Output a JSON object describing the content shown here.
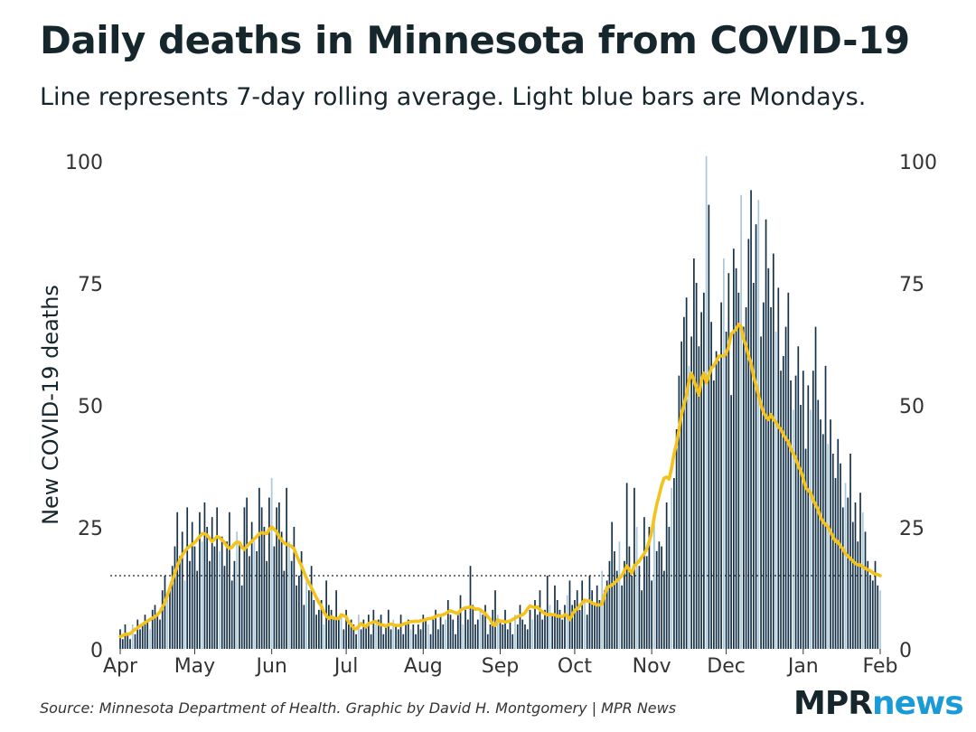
{
  "title": "Daily deaths in Minnesota from COVID-19",
  "subtitle": "Line represents 7-day rolling average. Light blue bars are Mondays.",
  "source": "Source: Minnesota Department of Health. Graphic by David H. Montgomery | MPR News",
  "brand": {
    "part1": "MPR",
    "part2": "news"
  },
  "colors": {
    "bar": "#16324a",
    "monday_bar": "#a9c8dc",
    "line": "#f3c21b",
    "reference": "#222222",
    "text": "#333333"
  },
  "chart_data": {
    "type": "bar",
    "title": "Daily deaths in Minnesota from COVID-19",
    "ylabel": "New COVID-19 deaths",
    "xlabel": "",
    "ylim": [
      0,
      100
    ],
    "yticks": [
      0,
      25,
      50,
      75,
      100
    ],
    "ytick_labels": [
      "0",
      "25",
      "50",
      "75",
      "100"
    ],
    "xtick_labels": [
      "Apr",
      "May",
      "Jun",
      "Jul",
      "Aug",
      "Sep",
      "Oct",
      "Nov",
      "Dec",
      "Jan",
      "Feb"
    ],
    "xtick_days": [
      0,
      30,
      61,
      91,
      122,
      153,
      183,
      214,
      244,
      275,
      306
    ],
    "start_date": "Apr 1",
    "monday_offset": 5,
    "reference_line": 15,
    "series": [
      {
        "name": "Daily deaths",
        "kind": "bar",
        "values": [
          4,
          2,
          5,
          3,
          2,
          5,
          3,
          6,
          4,
          5,
          7,
          6,
          4,
          8,
          9,
          7,
          6,
          12,
          15,
          10,
          13,
          17,
          21,
          28,
          19,
          24,
          14,
          29,
          18,
          26,
          21,
          16,
          28,
          22,
          30,
          25,
          18,
          27,
          21,
          29,
          20,
          23,
          17,
          22,
          28,
          14,
          18,
          24,
          22,
          13,
          29,
          31,
          19,
          26,
          22,
          20,
          33,
          29,
          25,
          18,
          31,
          35,
          21,
          29,
          30,
          24,
          16,
          33,
          22,
          18,
          25,
          13,
          15,
          20,
          9,
          14,
          12,
          17,
          10,
          7,
          8,
          10,
          5,
          14,
          9,
          8,
          6,
          12,
          6,
          7,
          4,
          8,
          5,
          6,
          5,
          3,
          7,
          4,
          6,
          5,
          7,
          3,
          8,
          5,
          6,
          7,
          3,
          5,
          8,
          4,
          6,
          5,
          4,
          7,
          3,
          5,
          6,
          4,
          5,
          3,
          5,
          4,
          7,
          6,
          5,
          3,
          6,
          8,
          4,
          7,
          5,
          6,
          10,
          7,
          6,
          3,
          7,
          11,
          5,
          8,
          6,
          17,
          9,
          5,
          6,
          8,
          7,
          9,
          3,
          5,
          8,
          12,
          7,
          6,
          5,
          8,
          4,
          6,
          3,
          7,
          5,
          9,
          6,
          5,
          4,
          8,
          6,
          10,
          7,
          12,
          6,
          8,
          15,
          9,
          7,
          13,
          10,
          8,
          6,
          9,
          11,
          14,
          9,
          10,
          12,
          8,
          14,
          10,
          7,
          15,
          12,
          9,
          13,
          10,
          16,
          12,
          14,
          18,
          26,
          20,
          16,
          22,
          13,
          18,
          34,
          21,
          15,
          33,
          25,
          17,
          12,
          27,
          19,
          25,
          14,
          28,
          20,
          22,
          21,
          16,
          30,
          25,
          33,
          35,
          45,
          56,
          63,
          68,
          72,
          58,
          64,
          80,
          75,
          62,
          69,
          73,
          101,
          91,
          67,
          55,
          61,
          59,
          71,
          80,
          65,
          77,
          52,
          82,
          78,
          73,
          93,
          66,
          70,
          84,
          94,
          75,
          87,
          92,
          64,
          71,
          88,
          78,
          70,
          81,
          65,
          74,
          57,
          60,
          66,
          73,
          55,
          49,
          56,
          62,
          50,
          57,
          41,
          54,
          49,
          57,
          66,
          51,
          47,
          44,
          58,
          42,
          47,
          40,
          35,
          43,
          38,
          29,
          34,
          31,
          40,
          26,
          30,
          22,
          32,
          28,
          24,
          18,
          15,
          14,
          18,
          13,
          12
        ]
      },
      {
        "name": "7-day rolling average",
        "kind": "line",
        "values": [
          2.5,
          2.7,
          3.0,
          3.0,
          3.1,
          3.6,
          4.0,
          4.3,
          4.7,
          5.0,
          5.4,
          5.7,
          6.0,
          6.3,
          6.6,
          7.0,
          7.6,
          8.5,
          9.5,
          11.0,
          12.5,
          14.0,
          15.5,
          17.0,
          18.2,
          19.2,
          20.0,
          20.6,
          21.0,
          21.4,
          21.8,
          22.4,
          23.0,
          23.6,
          23.6,
          23.3,
          22.6,
          22.0,
          22.5,
          23.0,
          22.8,
          22.3,
          21.8,
          21.0,
          20.6,
          20.8,
          21.5,
          21.9,
          21.8,
          20.8,
          20.4,
          21.0,
          21.6,
          22.0,
          22.6,
          23.0,
          23.6,
          23.8,
          23.7,
          23.6,
          24.5,
          25.0,
          24.5,
          24.0,
          23.0,
          22.3,
          21.7,
          21.4,
          21.3,
          21.0,
          20.5,
          19.2,
          18.0,
          17.0,
          15.7,
          14.5,
          13.5,
          12.5,
          11.5,
          10.5,
          9.5,
          8.8,
          7.5,
          6.8,
          6.2,
          6.6,
          6.3,
          6.2,
          6.2,
          7.0,
          6.8,
          6.6,
          5.4,
          5.0,
          4.2,
          4.1,
          4.6,
          5.2,
          4.8,
          4.5,
          5.2,
          5.3,
          5.5,
          5.6,
          5.1,
          4.9,
          4.9,
          4.6,
          5.0,
          5.1,
          4.9,
          4.8,
          4.8,
          4.8,
          5.1,
          5.2,
          5.4,
          5.6,
          5.6,
          5.7,
          5.6,
          5.8,
          5.8,
          6.0,
          6.2,
          6.2,
          6.4,
          6.6,
          6.9,
          6.8,
          7.0,
          7.2,
          7.6,
          7.8,
          7.6,
          7.4,
          7.2,
          7.9,
          8.2,
          8.4,
          8.5,
          8.6,
          8.5,
          8.1,
          8.2,
          8.0,
          7.6,
          7.2,
          6.6,
          6.0,
          5.0,
          4.8,
          6.0,
          5.6,
          5.7,
          5.5,
          5.6,
          5.7,
          6.0,
          6.3,
          6.6,
          6.8,
          7.0,
          7.4,
          8.2,
          8.8,
          8.6,
          8.5,
          8.6,
          8.0,
          7.6,
          7.2,
          7.0,
          7.1,
          7.0,
          7.0,
          6.7,
          6.7,
          6.6,
          7.0,
          6.8,
          6.0,
          7.0,
          7.9,
          8.2,
          8.8,
          9.4,
          10.0,
          9.8,
          9.8,
          9.4,
          9.2,
          9.0,
          9.0,
          9.2,
          11.0,
          12.6,
          12.8,
          13.1,
          13.5,
          14.0,
          14.5,
          15.0,
          16.0,
          17.0,
          16.2,
          15.5,
          17.0,
          17.5,
          18.0,
          18.8,
          19.5,
          20.5,
          22.0,
          24.0,
          27.0,
          29.5,
          31.5,
          33.5,
          35.0,
          35.2,
          34.8,
          37.0,
          40.0,
          42.0,
          45.0,
          48.0,
          50.0,
          52.0,
          55.0,
          56.5,
          55.0,
          53.5,
          52.0,
          55.0,
          56.5,
          54.5,
          56.0,
          57.5,
          58.0,
          59.0,
          60.0,
          60.0,
          60.0,
          60.5,
          62.0,
          64.5,
          65.0,
          65.5,
          66.5,
          66.0,
          63.5,
          62.0,
          60.0,
          58.5,
          56.0,
          54.0,
          52.0,
          50.0,
          48.5,
          47.5,
          47.0,
          48.0,
          47.0,
          46.5,
          45.5,
          45.0,
          44.0,
          43.0,
          42.5,
          41.0,
          40.0,
          39.0,
          37.5,
          36.5,
          35.0,
          33.0,
          32.5,
          32.0,
          30.5,
          29.5,
          28.5,
          27.0,
          26.0,
          25.5,
          25.0,
          24.0,
          23.0,
          22.0,
          22.0,
          21.0,
          20.5,
          19.5,
          19.0,
          18.5,
          18.0,
          17.5,
          17.2,
          17.2,
          16.8,
          16.5,
          16.2,
          16.0,
          15.6,
          15.3,
          15.2,
          15.0
        ]
      }
    ]
  }
}
